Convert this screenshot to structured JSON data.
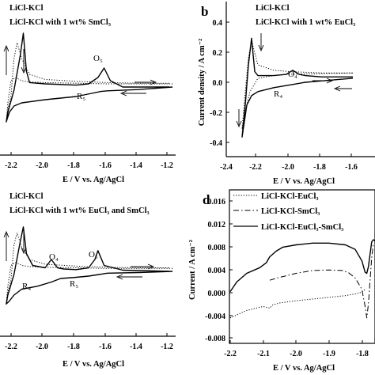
{
  "panels": {
    "a": {
      "tag": "",
      "xlabel": "E / V vs. Ag/AgCl",
      "xticks": [
        "-2.2",
        "-2.0",
        "-1.8",
        "-1.6",
        "-1.4",
        "-1.2"
      ],
      "legend": [
        "LiCl-KCl",
        "LiCl-KCl with 1 wt% SmCl₃"
      ],
      "peaks": [
        "O₅",
        "R₅"
      ]
    },
    "b": {
      "tag": "b",
      "xlabel": "E / V vs. Ag/AgCl",
      "ylabel": "Current density / A cm⁻²",
      "xticks": [
        "-2.4",
        "-2.2",
        "-2.0",
        "-1.8",
        "-1.6"
      ],
      "yticks": [
        "0.4",
        "0.2",
        "0.0",
        "-0.2",
        "-0.4"
      ],
      "legend": [
        "LiCl-KCl",
        "LiCl-KCl with 1 wt% EuCl₃"
      ],
      "peaks": [
        "O₄",
        "R₄"
      ]
    },
    "c": {
      "tag": "",
      "xlabel": "E / V vs. Ag/AgCl",
      "xticks": [
        "-2.2",
        "-2.0",
        "-1.8",
        "-1.6",
        "-1.4",
        "-1.2"
      ],
      "legend": [
        "LiCl-KCl",
        "LiCl-KCl with 1 wt% EuCl₃ and SmCl₃"
      ],
      "peaks": [
        "O₄",
        "O₅",
        "R₄",
        "R₅"
      ]
    },
    "d": {
      "tag": "d",
      "xlabel": "E / V vs. Ag/AgCl",
      "ylabel": "Current / A cm⁻²",
      "xticks": [
        "-2.2",
        "-2.1",
        "-2.0",
        "-1.9",
        "-1.8"
      ],
      "yticks": [
        "0.016",
        "0.012",
        "0.008",
        "0.004",
        "0.000",
        "-0.004",
        "-0.008"
      ],
      "legend": [
        "LiCl-KCl-EuCl₃",
        "LiCl-KCl-SmCl₃",
        "LiCl-KCl-EuCl₃-SmCl₃"
      ]
    }
  },
  "chart_data": [
    {
      "panel": "a",
      "type": "line",
      "xlabel": "E / V vs. Ag/AgCl",
      "ylabel": "",
      "xlim": [
        -2.28,
        -1.16
      ],
      "ylim": [
        -1,
        1
      ],
      "series": [
        {
          "name": "LiCl-KCl",
          "style": "dotted",
          "x": [
            -1.18,
            -1.4,
            -1.6,
            -1.8,
            -2.0,
            -2.1,
            -2.15,
            -2.19,
            -2.22,
            -2.24,
            -2.25,
            -2.24,
            -2.22,
            -2.2,
            -2.18,
            -2.15,
            -2.1,
            -2.0,
            -1.8,
            -1.6,
            -1.4,
            -1.2
          ],
          "y": [
            0.05,
            0.05,
            0.05,
            0.06,
            0.07,
            0.08,
            0.1,
            0.15,
            0.1,
            -0.25,
            -0.55,
            -0.35,
            -0.15,
            0.45,
            0.7,
            0.45,
            0.2,
            0.12,
            0.09,
            0.07,
            0.06,
            0.06
          ]
        },
        {
          "name": "LiCl-KCl with 1 wt% SmCl₃",
          "style": "solid",
          "x": [
            -1.18,
            -1.4,
            -1.6,
            -1.64,
            -1.7,
            -1.8,
            -2.0,
            -2.15,
            -2.2,
            -2.23,
            -2.25,
            -2.24,
            -2.2,
            -2.16,
            -2.14,
            -2.12,
            -2.1,
            -2.0,
            -1.8,
            -1.72,
            -1.66,
            -1.62,
            -1.58,
            -1.5,
            -1.2
          ],
          "y": [
            0.0,
            -0.04,
            -0.06,
            -0.07,
            -0.1,
            -0.15,
            -0.2,
            -0.25,
            -0.3,
            -0.4,
            -0.55,
            -0.4,
            -0.05,
            0.5,
            0.85,
            0.25,
            0.07,
            0.05,
            0.03,
            0.05,
            0.15,
            0.3,
            0.1,
            0.0,
            0.0
          ]
        }
      ]
    },
    {
      "panel": "b",
      "type": "line",
      "xlabel": "E / V vs. Ag/AgCl",
      "ylabel": "Current density / A cm⁻²",
      "xlim": [
        -2.4,
        -1.6
      ],
      "ylim": [
        -0.48,
        0.42
      ],
      "series": [
        {
          "name": "LiCl-KCl",
          "style": "dotted",
          "x": [
            -1.6,
            -1.8,
            -2.0,
            -2.1,
            -2.2,
            -2.25,
            -2.28,
            -2.3,
            -2.28,
            -2.26,
            -2.24,
            -2.2,
            -2.1,
            -2.0,
            -1.8,
            -1.6
          ],
          "y": [
            0.04,
            0.035,
            0.03,
            0.02,
            0.0,
            -0.1,
            -0.25,
            -0.38,
            -0.1,
            0.15,
            0.28,
            0.1,
            0.06,
            0.05,
            0.04,
            0.04
          ]
        },
        {
          "name": "LiCl-KCl with 1 wt% EuCl₃",
          "style": "solid",
          "x": [
            -1.6,
            -1.8,
            -1.9,
            -2.0,
            -2.1,
            -2.2,
            -2.24,
            -2.27,
            -2.3,
            -2.28,
            -2.26,
            -2.24,
            -2.22,
            -2.2,
            -2.1,
            -2.02,
            -1.98,
            -1.94,
            -1.9,
            -1.8,
            -1.6
          ],
          "y": [
            0.0,
            -0.02,
            -0.03,
            -0.05,
            -0.07,
            -0.1,
            -0.13,
            -0.2,
            -0.44,
            -0.2,
            0.1,
            0.3,
            0.05,
            0.02,
            0.02,
            0.03,
            0.06,
            0.03,
            0.02,
            0.01,
            0.01
          ]
        }
      ]
    },
    {
      "panel": "c",
      "type": "line",
      "xlabel": "E / V vs. Ag/AgCl",
      "ylabel": "",
      "xlim": [
        -2.28,
        -1.16
      ],
      "ylim": [
        -1,
        1
      ],
      "series": [
        {
          "name": "LiCl-KCl",
          "style": "dotted",
          "x": [
            -1.18,
            -1.4,
            -1.6,
            -1.8,
            -2.0,
            -2.1,
            -2.15,
            -2.19,
            -2.22,
            -2.24,
            -2.25,
            -2.24,
            -2.22,
            -2.2,
            -2.18,
            -2.15,
            -2.1,
            -2.0,
            -1.8,
            -1.6,
            -1.4,
            -1.2
          ],
          "y": [
            0.05,
            0.05,
            0.05,
            0.06,
            0.07,
            0.08,
            0.1,
            0.15,
            0.1,
            -0.25,
            -0.55,
            -0.35,
            -0.15,
            0.45,
            0.65,
            0.4,
            0.2,
            0.12,
            0.09,
            0.07,
            0.06,
            0.06
          ]
        },
        {
          "name": "LiCl-KCl with 1 wt% EuCl₃ and SmCl₃",
          "style": "solid",
          "x": [
            -1.18,
            -1.4,
            -1.6,
            -1.72,
            -1.8,
            -1.9,
            -1.96,
            -2.05,
            -2.15,
            -2.2,
            -2.23,
            -2.25,
            -2.24,
            -2.2,
            -2.16,
            -2.14,
            -2.12,
            -2.08,
            -2.0,
            -1.96,
            -1.92,
            -1.88,
            -1.8,
            -1.72,
            -1.68,
            -1.66,
            -1.62,
            -1.5,
            -1.2
          ],
          "y": [
            0.0,
            -0.02,
            -0.03,
            -0.08,
            -0.1,
            -0.12,
            -0.18,
            -0.25,
            -0.3,
            -0.4,
            -0.5,
            -0.55,
            -0.4,
            -0.05,
            0.5,
            0.75,
            0.3,
            0.1,
            0.06,
            0.2,
            0.06,
            0.04,
            0.03,
            0.06,
            0.2,
            0.35,
            0.1,
            0.02,
            0.0
          ]
        }
      ]
    },
    {
      "panel": "d",
      "type": "line",
      "xlabel": "E / V vs. Ag/AgCl",
      "ylabel": "Current / A cm⁻²",
      "xlim": [
        -2.2,
        -1.76
      ],
      "ylim": [
        -0.008,
        0.016
      ],
      "series": [
        {
          "name": "LiCl-KCl-EuCl₃",
          "style": "dotted",
          "x": [
            -2.2,
            -2.15,
            -2.1,
            -2.08,
            -2.07,
            -2.05,
            -2.0,
            -1.95,
            -1.9,
            -1.85,
            -1.82,
            -1.8,
            -1.79
          ],
          "y": [
            -0.0045,
            -0.0032,
            -0.0025,
            -0.0028,
            -0.0022,
            -0.0019,
            -0.0015,
            -0.0012,
            -0.0009,
            -0.0006,
            -0.0003,
            0.0,
            0.0005
          ]
        },
        {
          "name": "LiCl-KCl-SmCl₃",
          "style": "dashdot",
          "x": [
            -2.08,
            -2.05,
            -2.0,
            -1.95,
            -1.9,
            -1.86,
            -1.84,
            -1.82,
            -1.8,
            -1.79,
            -1.785,
            -1.78,
            -1.77,
            -1.765
          ],
          "y": [
            0.0021,
            0.0026,
            0.0033,
            0.0038,
            0.0039,
            0.0038,
            0.0034,
            0.0025,
            0.0005,
            -0.0025,
            -0.0045,
            -0.002,
            0.006,
            0.0085
          ]
        },
        {
          "name": "LiCl-KCl-EuCl₃-SmCl₃",
          "style": "solid",
          "x": [
            -2.2,
            -2.18,
            -2.15,
            -2.11,
            -2.09,
            -2.08,
            -2.06,
            -2.04,
            -2.0,
            -1.95,
            -1.9,
            -1.85,
            -1.82,
            -1.8,
            -1.79,
            -1.785,
            -1.78,
            -1.77,
            -1.765,
            -1.76
          ],
          "y": [
            0.0001,
            0.0018,
            0.0033,
            0.0043,
            0.0052,
            0.0062,
            0.0072,
            0.0079,
            0.0083,
            0.0086,
            0.0086,
            0.0083,
            0.0075,
            0.0055,
            0.0035,
            0.0033,
            0.0045,
            0.0088,
            0.0092,
            0.009
          ]
        }
      ]
    }
  ]
}
